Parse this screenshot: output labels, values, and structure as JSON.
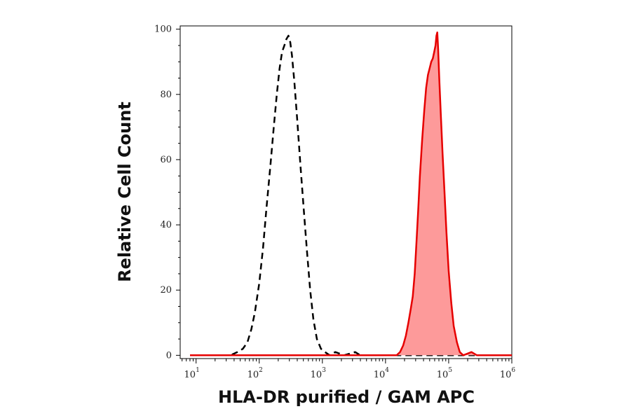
{
  "chart_data": {
    "type": "area",
    "xlabel": "HLA-DR purified / GAM APC",
    "ylabel": "Relative Cell Count",
    "x_scale": "log10",
    "xlim": [
      5.6,
      1000000
    ],
    "ylim": [
      -1,
      101
    ],
    "x_ticks": [
      {
        "base": "10",
        "exp": "1",
        "value": 10
      },
      {
        "base": "10",
        "exp": "2",
        "value": 100
      },
      {
        "base": "10",
        "exp": "3",
        "value": 1000
      },
      {
        "base": "10",
        "exp": "4",
        "value": 10000
      },
      {
        "base": "10",
        "exp": "5",
        "value": 100000
      },
      {
        "base": "10",
        "exp": "6",
        "value": 1000000
      }
    ],
    "y_ticks": [
      0,
      20,
      40,
      60,
      80,
      100
    ],
    "grid": false,
    "legend": "none",
    "series": [
      {
        "style": "dashed-outline",
        "color": "#000000",
        "points": [
          [
            8,
            0
          ],
          [
            20,
            0
          ],
          [
            35,
            0
          ],
          [
            45,
            1
          ],
          [
            55,
            2
          ],
          [
            65,
            4
          ],
          [
            75,
            8
          ],
          [
            85,
            13
          ],
          [
            100,
            22
          ],
          [
            115,
            33
          ],
          [
            130,
            45
          ],
          [
            150,
            58
          ],
          [
            170,
            70
          ],
          [
            190,
            80
          ],
          [
            210,
            88
          ],
          [
            230,
            93
          ],
          [
            250,
            95
          ],
          [
            270,
            97
          ],
          [
            290,
            98
          ],
          [
            310,
            96
          ],
          [
            330,
            92
          ],
          [
            360,
            84
          ],
          [
            400,
            72
          ],
          [
            450,
            58
          ],
          [
            510,
            44
          ],
          [
            570,
            32
          ],
          [
            640,
            20
          ],
          [
            720,
            11
          ],
          [
            820,
            5
          ],
          [
            950,
            2
          ],
          [
            1100,
            1
          ],
          [
            1300,
            0
          ],
          [
            1600,
            1
          ],
          [
            2200,
            0
          ],
          [
            3300,
            1
          ],
          [
            4000,
            0
          ],
          [
            1000000,
            0
          ]
        ]
      },
      {
        "style": "filled",
        "color": "#e60000",
        "fill": "#fd9a9a",
        "points": [
          [
            8,
            0
          ],
          [
            15000,
            0
          ],
          [
            17000,
            1
          ],
          [
            19000,
            3
          ],
          [
            21000,
            6
          ],
          [
            23000,
            10
          ],
          [
            25000,
            14
          ],
          [
            27000,
            18
          ],
          [
            29000,
            25
          ],
          [
            31000,
            35
          ],
          [
            33000,
            45
          ],
          [
            35000,
            55
          ],
          [
            38000,
            66
          ],
          [
            41000,
            75
          ],
          [
            44000,
            82
          ],
          [
            47000,
            86
          ],
          [
            50000,
            88
          ],
          [
            53000,
            90
          ],
          [
            56000,
            91
          ],
          [
            59000,
            93
          ],
          [
            62000,
            95
          ],
          [
            64000,
            98
          ],
          [
            66000,
            99
          ],
          [
            68000,
            94
          ],
          [
            71000,
            85
          ],
          [
            75000,
            74
          ],
          [
            80000,
            62
          ],
          [
            86000,
            50
          ],
          [
            92000,
            38
          ],
          [
            100000,
            26
          ],
          [
            110000,
            16
          ],
          [
            120000,
            9
          ],
          [
            135000,
            4
          ],
          [
            150000,
            1
          ],
          [
            170000,
            0
          ],
          [
            230000,
            1
          ],
          [
            280000,
            0
          ],
          [
            1000000,
            0
          ]
        ]
      }
    ]
  }
}
